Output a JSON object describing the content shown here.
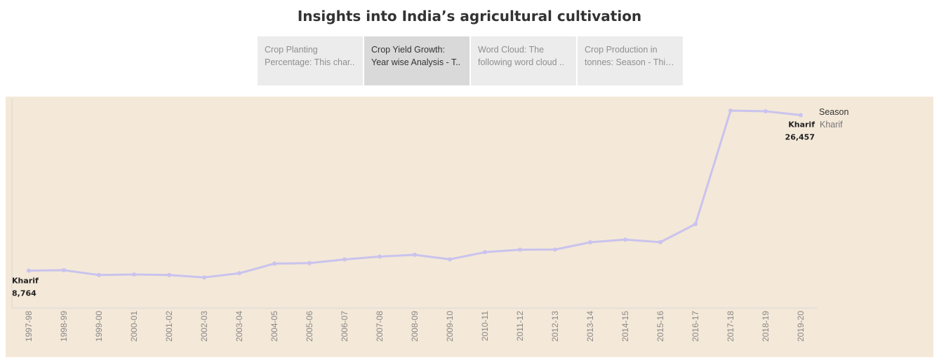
{
  "page": {
    "title": "Insights into India’s agricultural cultivation"
  },
  "tabs": [
    {
      "label": "Crop Planting Percentage: This char..",
      "active": false
    },
    {
      "label": "Crop Yield Growth: Year wise Analysis - T..",
      "active": true
    },
    {
      "label": "Word Cloud: The following word cloud ..",
      "active": false
    },
    {
      "label": "Crop Production in tonnes: Season - This ..",
      "active": false
    }
  ],
  "legend": {
    "title": "Season",
    "items": [
      "Kharif"
    ]
  },
  "colors": {
    "line": "#c9c3ee",
    "panel_background": "#f4e8d8",
    "axis": "#d8d8d8",
    "tick_label": "#888888"
  },
  "chart_data": {
    "type": "line",
    "title": "",
    "xlabel": "",
    "ylabel": "",
    "categories": [
      "1997-98",
      "1998-99",
      "1999-00",
      "2000-01",
      "2001-02",
      "2002-03",
      "2003-04",
      "2004-05",
      "2005-06",
      "2006-07",
      "2007-08",
      "2008-09",
      "2009-10",
      "2010-11",
      "2011-12",
      "2012-13",
      "2013-14",
      "2014-15",
      "2015-16",
      "2016-17",
      "2017-18",
      "2018-19",
      "2019-20"
    ],
    "series": [
      {
        "name": "Kharif",
        "values": [
          8764,
          8810,
          8260,
          8320,
          8260,
          7990,
          8460,
          9560,
          9620,
          10040,
          10360,
          10560,
          10050,
          10860,
          11140,
          11160,
          11990,
          12290,
          12000,
          14060,
          26960,
          26890,
          26457
        ]
      }
    ],
    "ylim": [
      4500,
      28000
    ],
    "grid": false,
    "legend_position": "right",
    "annotations": [
      {
        "series": "Kharif",
        "category": "1997-98",
        "label": "Kharif",
        "value_label": "8,764"
      },
      {
        "series": "Kharif",
        "category": "2019-20",
        "label": "Kharif",
        "value_label": "26,457"
      }
    ]
  }
}
